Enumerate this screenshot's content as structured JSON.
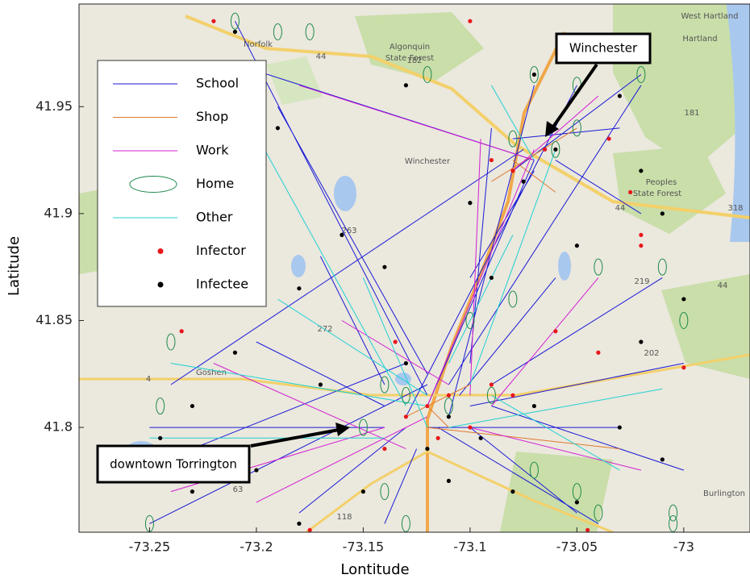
{
  "chart_data": {
    "type": "network",
    "x_label": "Lontitude",
    "y_label": "Latitude",
    "xlim": [
      -73.283,
      -72.969
    ],
    "ylim": [
      41.751,
      41.998
    ],
    "xticks": [
      -73.25,
      -73.2,
      -73.15,
      -73.1,
      -73.05,
      -73
    ],
    "yticks": [
      41.8,
      41.85,
      41.9,
      41.95
    ],
    "legend": "upper left",
    "annotations": [
      "Winchester",
      "downtown Torrington"
    ],
    "map_labels": [
      "West Hartland",
      "Hartland",
      "Algonquin",
      "State Forest",
      "Norfolk",
      "Winchester",
      "Goshen",
      "Peoples",
      "State Forest",
      "Burlington",
      "44",
      "182",
      "181",
      "44",
      "318",
      "263",
      "272",
      "4",
      "202",
      "63",
      "118",
      "219",
      "44"
    ],
    "series": [
      {
        "name": "School",
        "color": "#1a1ad6",
        "marker": "line",
        "x": [
          -73.12,
          -73.07,
          null,
          -73.13,
          -73.05,
          null,
          -73.11,
          -73.02,
          null,
          -73.14,
          -73.25,
          null,
          -73.12,
          -73.21,
          null,
          -73.1,
          -73.0,
          null,
          -73.13,
          -73.18,
          null,
          -73.07,
          -73.21,
          null,
          -73.08,
          -73.02,
          null,
          -73.12,
          -73.25,
          null,
          -73.115,
          -73.04,
          null,
          -73.09,
          -73.01,
          null,
          -73.14,
          -73.2,
          null,
          -73.1,
          -73.09,
          null,
          -73.12,
          -73.03,
          null,
          -73.075,
          -73.24,
          null,
          -73.13,
          -73.22,
          null,
          -73.11,
          -73.07,
          null,
          -73.06,
          -73.02,
          null,
          -73.12,
          -73.19,
          null,
          -73.1,
          -73.05,
          null,
          -73.14,
          -73.17,
          null,
          -73.09,
          -73.0,
          null,
          -73.07,
          -73.1,
          null,
          -73.125,
          -73.14,
          null,
          -73.08,
          -73.03,
          null,
          -73.13,
          -73.23,
          null,
          -73.105,
          -73.06
        ],
        "y": [
          41.81,
          41.925,
          null,
          41.805,
          41.96,
          null,
          41.82,
          41.96,
          null,
          41.8,
          41.8,
          null,
          41.815,
          41.99,
          null,
          41.81,
          41.83,
          null,
          41.8,
          41.76,
          null,
          41.925,
          41.97,
          null,
          41.92,
          41.965,
          null,
          41.82,
          41.755,
          null,
          41.8,
          41.755,
          null,
          41.82,
          41.87,
          null,
          41.81,
          41.84,
          null,
          41.83,
          41.94,
          null,
          41.8,
          41.8,
          null,
          41.93,
          41.82,
          null,
          41.815,
          41.77,
          null,
          41.805,
          41.96,
          null,
          41.925,
          41.9,
          null,
          41.825,
          41.95,
          null,
          41.8,
          41.76,
          null,
          41.82,
          41.88,
          null,
          41.81,
          41.78,
          null,
          41.92,
          41.87,
          null,
          41.79,
          41.755,
          null,
          41.935,
          41.94,
          null,
          41.83,
          41.79,
          null,
          41.815,
          41.87
        ]
      },
      {
        "name": "Shop",
        "color": "#e07a2e",
        "marker": "line",
        "x": [
          -73.12,
          -73.11,
          null,
          -73.09,
          -73.05,
          null,
          -73.12,
          -73.03,
          null,
          -73.13,
          -73.1,
          null,
          -73.08,
          -73.06
        ],
        "y": [
          41.81,
          41.8,
          null,
          41.915,
          41.94,
          null,
          41.8,
          41.79,
          null,
          41.805,
          41.82,
          null,
          41.925,
          41.91
        ]
      },
      {
        "name": "Work",
        "color": "#d21fd2",
        "marker": "line",
        "x": [
          -73.12,
          -73.07,
          null,
          -73.14,
          -73.24,
          null,
          -73.1,
          -73.02,
          null,
          -73.07,
          -73.18,
          null,
          -73.11,
          -73.16,
          null,
          -73.13,
          -73.22,
          null,
          -73.09,
          -73.04,
          null,
          -73.12,
          -73.2,
          null,
          -73.08,
          -73.04,
          null,
          -73.1,
          -73.095
        ],
        "y": [
          41.81,
          41.93,
          null,
          41.8,
          41.77,
          null,
          41.8,
          41.78,
          null,
          41.925,
          41.96,
          null,
          41.82,
          41.85,
          null,
          41.79,
          41.83,
          null,
          41.81,
          41.87,
          null,
          41.805,
          41.765,
          null,
          41.92,
          41.955,
          null,
          41.815,
          41.935
        ]
      },
      {
        "name": "Home",
        "color": "#1e8a4a",
        "marker": "ellipse",
        "x": [
          -73.21,
          -73.175,
          -73.19,
          -73.12,
          -73.07,
          -73.05,
          -73.02,
          -73.05,
          -73.08,
          -73.06,
          -73.04,
          -73.01,
          -73.0,
          -73.24,
          -73.245,
          -73.25,
          -73.15,
          -73.13,
          -73.11,
          -73.09,
          -73.14,
          -73.07,
          -73.05,
          -73.04,
          -73.005,
          -73.005,
          -73.13,
          -73.14,
          -73.1,
          -73.08
        ],
        "y": [
          41.99,
          41.985,
          41.985,
          41.965,
          41.965,
          41.96,
          41.965,
          41.94,
          41.935,
          41.93,
          41.875,
          41.875,
          41.85,
          41.84,
          41.81,
          41.755,
          41.8,
          41.815,
          41.81,
          41.815,
          41.77,
          41.78,
          41.77,
          41.76,
          41.76,
          41.755,
          41.755,
          41.82,
          41.85,
          41.86
        ]
      },
      {
        "name": "Other",
        "color": "#1fd2d2",
        "marker": "line",
        "x": [
          -73.12,
          -73.24,
          null,
          -73.11,
          -73.01,
          null,
          -73.13,
          -73.21,
          null,
          -73.1,
          -73.06,
          null,
          -73.12,
          -73.15,
          null,
          -73.09,
          -73.03,
          null,
          -73.14,
          -73.25,
          null,
          -73.11,
          -73.08,
          null,
          -73.07,
          -73.09,
          null,
          -73.12,
          -73.19
        ],
        "y": [
          41.81,
          41.83,
          null,
          41.8,
          41.818,
          null,
          41.81,
          41.955,
          null,
          41.82,
          41.93,
          null,
          41.8,
          41.87,
          null,
          41.815,
          41.78,
          null,
          41.795,
          41.795,
          null,
          41.83,
          41.89,
          null,
          41.925,
          41.96,
          null,
          41.815,
          41.86
        ]
      },
      {
        "name": "Infector",
        "color": "#e8161b",
        "marker": "dot",
        "x": [
          -73.22,
          -73.1,
          -73.035,
          -73.025,
          -73.09,
          -73.08,
          -73.065,
          -73.02,
          -73.02,
          -73.235,
          -73.12,
          -73.11,
          -73.13,
          -73.1,
          -73.09,
          -73.14,
          -73.04,
          -73.0,
          -73.175,
          -73.045,
          -73.06,
          -73.135,
          -73.115,
          -73.08
        ],
        "y": [
          41.99,
          41.99,
          41.935,
          41.91,
          41.925,
          41.92,
          41.93,
          41.885,
          41.89,
          41.845,
          41.81,
          41.815,
          41.805,
          41.8,
          41.82,
          41.79,
          41.835,
          41.828,
          41.752,
          41.752,
          41.845,
          41.84,
          41.795,
          41.815
        ]
      },
      {
        "name": "Infectee",
        "color": "#000000",
        "marker": "dot",
        "x": [
          -73.21,
          -73.19,
          -73.13,
          -73.07,
          -73.03,
          -73.02,
          -73.01,
          -73.06,
          -73.075,
          -73.1,
          -73.16,
          -73.18,
          -73.14,
          -73.09,
          -73.05,
          -73.0,
          -73.02,
          -73.03,
          -73.01,
          -73.05,
          -73.08,
          -73.11,
          -73.15,
          -73.18,
          -73.2,
          -73.23,
          -73.245,
          -73.23,
          -73.21,
          -73.17,
          -73.13,
          -73.11,
          -73.095,
          -73.07,
          -73.12
        ],
        "y": [
          41.985,
          41.94,
          41.96,
          41.965,
          41.955,
          41.92,
          41.9,
          41.93,
          41.915,
          41.905,
          41.89,
          41.865,
          41.875,
          41.87,
          41.885,
          41.86,
          41.84,
          41.8,
          41.785,
          41.765,
          41.77,
          41.775,
          41.77,
          41.755,
          41.78,
          41.77,
          41.795,
          41.81,
          41.835,
          41.82,
          41.83,
          41.805,
          41.795,
          41.81,
          41.79
        ]
      }
    ]
  }
}
